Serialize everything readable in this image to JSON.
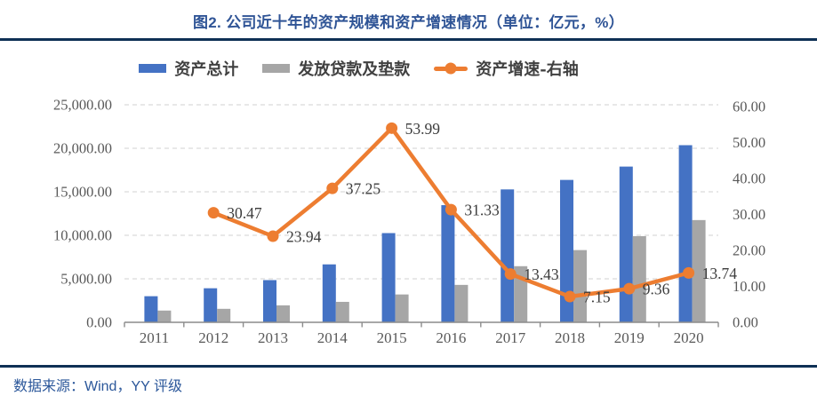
{
  "header": {
    "title": "图2. 公司近十年的资产规模和资产增速情况（单位：亿元，%）"
  },
  "footer": {
    "source": "数据来源：Wind，YY 评级"
  },
  "colors": {
    "title_text": "#2F5496",
    "rule": "#0E3055",
    "source_text": "#2B579A",
    "bar_total": "#4472C4",
    "bar_loans": "#A6A6A6",
    "growth_line": "#ED7D31",
    "axis_text": "#595959",
    "data_label_text": "#3C3C3C",
    "gridline": "#D9D9D9",
    "axis_line": "#8C8C8C"
  },
  "legend": [
    {
      "label": "资产总计",
      "marker": "bar",
      "color": "#4472C4"
    },
    {
      "label": "发放贷款及垫款",
      "marker": "bar",
      "color": "#A6A6A6"
    },
    {
      "label": "资产增速-右轴",
      "marker": "line",
      "color": "#ED7D31"
    }
  ],
  "chart_data": {
    "type": "bar",
    "subtype": "combo bar + line, dual axis",
    "title": "图2. 公司近十年的资产规模和资产增速情况（单位：亿元，%）",
    "categories": [
      "2011",
      "2012",
      "2013",
      "2014",
      "2015",
      "2016",
      "2017",
      "2018",
      "2019",
      "2020"
    ],
    "series": [
      {
        "name": "资产总计",
        "type": "bar",
        "axis": "left",
        "color": "#4472C4",
        "values": [
          3000,
          3914,
          4851,
          6658,
          10253,
          13465,
          15273,
          16365,
          17897,
          20356
        ]
      },
      {
        "name": "发放贷款及垫款",
        "type": "bar",
        "axis": "left",
        "color": "#A6A6A6",
        "values": [
          1350,
          1550,
          1950,
          2350,
          3200,
          4300,
          6450,
          8300,
          9900,
          11750
        ]
      },
      {
        "name": "资产增速-右轴",
        "type": "line",
        "axis": "right",
        "color": "#ED7D31",
        "values": [
          null,
          30.47,
          23.94,
          37.25,
          53.99,
          31.33,
          13.43,
          7.15,
          9.36,
          13.74
        ],
        "point_labels": [
          null,
          "30.47",
          "23.94",
          "37.25",
          "53.99",
          "31.33",
          "13.43",
          "7.15",
          "9.36",
          "13.74"
        ]
      }
    ],
    "left_axis": {
      "min": 0,
      "max": 25000,
      "step": 5000,
      "tick_labels": [
        "0.00",
        "5,000.00",
        "10,000.00",
        "15,000.00",
        "20,000.00",
        "25,000.00"
      ]
    },
    "right_axis": {
      "min": 0,
      "max": 60,
      "step": 10,
      "tick_labels": [
        "0.00",
        "10.00",
        "20.00",
        "30.00",
        "40.00",
        "50.00",
        "60.00"
      ]
    },
    "grid": "horizontal dashed",
    "legend_position": "top"
  }
}
